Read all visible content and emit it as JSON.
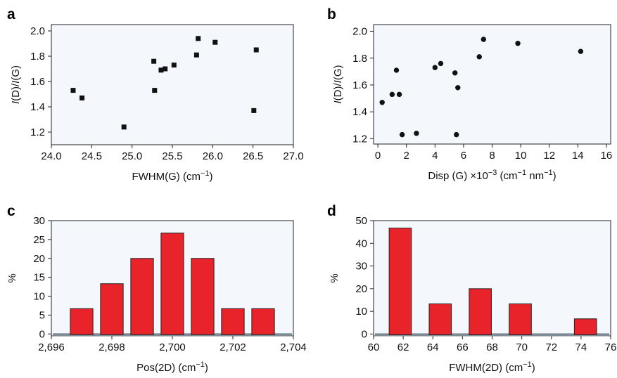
{
  "colors": {
    "plot_bg": "#f4f8fd",
    "bar_fill": "#e8232a",
    "bar_edge": "#222222",
    "baseline": "#7d8b95",
    "marker": "#111111"
  },
  "chart_data": [
    {
      "panel": "a",
      "type": "scatter",
      "marker": "square",
      "xlabel": "FWHM(G) (cm−1)",
      "ylabel": "I(D)/I(G)",
      "xlim": [
        24.0,
        27.0
      ],
      "ylim": [
        1.1,
        2.05
      ],
      "xticks": [
        24.0,
        24.5,
        25.0,
        25.5,
        26.0,
        26.5,
        27.0
      ],
      "xtick_labels": [
        "24.0",
        "24.5",
        "25.0",
        "25.5",
        "26.0",
        "26.5",
        "27.0"
      ],
      "yticks": [
        1.2,
        1.4,
        1.6,
        1.8,
        2.0
      ],
      "ytick_labels": [
        "1.2",
        "1.4",
        "1.6",
        "1.8",
        "2.0"
      ],
      "grid": false,
      "x": [
        24.27,
        24.38,
        24.9,
        25.27,
        25.28,
        25.36,
        25.41,
        25.52,
        25.8,
        25.82,
        26.03,
        26.51,
        26.54
      ],
      "y": [
        1.53,
        1.47,
        1.24,
        1.76,
        1.53,
        1.69,
        1.7,
        1.73,
        1.81,
        1.94,
        1.91,
        1.37,
        1.85
      ]
    },
    {
      "panel": "b",
      "type": "scatter",
      "marker": "circle",
      "xlabel": "Disp (G) ×10−3 (cm−1 nm−1)",
      "ylabel": "I(D)/I(G)",
      "xlim": [
        -0.3,
        16.3
      ],
      "ylim": [
        1.16,
        2.05
      ],
      "xticks": [
        0,
        2,
        4,
        6,
        8,
        10,
        12,
        14,
        16
      ],
      "xtick_labels": [
        "0",
        "2",
        "4",
        "6",
        "8",
        "10",
        "12",
        "14",
        "16"
      ],
      "yticks": [
        1.2,
        1.4,
        1.6,
        1.8,
        2.0
      ],
      "ytick_labels": [
        "1.2",
        "1.4",
        "1.6",
        "1.8",
        "2.0"
      ],
      "grid": false,
      "x": [
        0.3,
        1.0,
        1.3,
        1.5,
        1.7,
        2.7,
        4.0,
        4.4,
        5.4,
        5.5,
        5.6,
        7.1,
        7.4,
        9.8,
        14.2
      ],
      "y": [
        1.47,
        1.53,
        1.71,
        1.53,
        1.23,
        1.24,
        1.73,
        1.76,
        1.69,
        1.23,
        1.58,
        1.81,
        1.94,
        1.91,
        1.85
      ]
    },
    {
      "panel": "c",
      "type": "bar",
      "xlabel": "Pos(2D) (cm−1)",
      "ylabel": "%",
      "xlim": [
        2696,
        2704
      ],
      "ylim": [
        -0.5,
        30
      ],
      "xticks": [
        2696,
        2698,
        2700,
        2702,
        2704
      ],
      "xtick_labels": [
        "2,696",
        "2,698",
        "2,700",
        "2,702",
        "2,704"
      ],
      "yticks": [
        0,
        5,
        10,
        15,
        20,
        25,
        30
      ],
      "ytick_labels": [
        "0",
        "5",
        "10",
        "15",
        "20",
        "25",
        "30"
      ],
      "grid": false,
      "bar_width": 0.75,
      "x": [
        2697,
        2698,
        2699,
        2700,
        2701,
        2702,
        2703
      ],
      "values": [
        6.7,
        13.3,
        20,
        26.7,
        20,
        6.7,
        6.7
      ]
    },
    {
      "panel": "d",
      "type": "bar",
      "xlabel": "FWHM(2D) (cm−1)",
      "ylabel": "%",
      "xlim": [
        60,
        76
      ],
      "ylim": [
        -0.8,
        50
      ],
      "xticks": [
        60,
        62,
        64,
        66,
        68,
        70,
        72,
        74,
        76
      ],
      "xtick_labels": [
        "60",
        "62",
        "64",
        "66",
        "68",
        "70",
        "72",
        "74",
        "76"
      ],
      "yticks": [
        0,
        10,
        20,
        30,
        40,
        50
      ],
      "ytick_labels": [
        "0",
        "10",
        "20",
        "30",
        "40",
        "50"
      ],
      "grid": false,
      "bar_width": 1.5,
      "x": [
        61.8,
        64.5,
        67.2,
        69.9,
        74.3
      ],
      "values": [
        46.7,
        13.3,
        20,
        13.3,
        6.7
      ]
    }
  ]
}
